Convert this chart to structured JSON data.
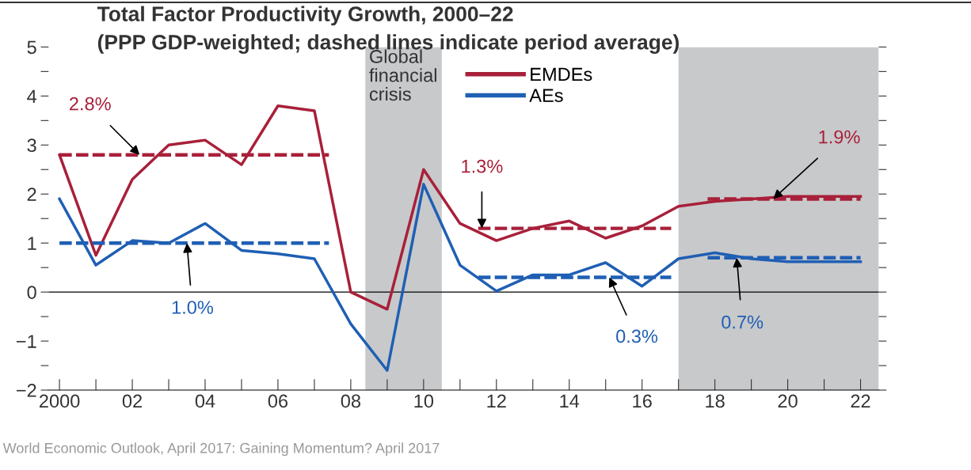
{
  "chart_data": {
    "type": "line",
    "title": "Total Factor Productivity Growth, 2000–22",
    "subtitle": "(PPP GDP-weighted; dashed lines indicate period average)",
    "x": [
      2000,
      2001,
      2002,
      2003,
      2004,
      2005,
      2006,
      2007,
      2008,
      2009,
      2010,
      2011,
      2012,
      2013,
      2014,
      2015,
      2016,
      2017,
      2018,
      2019,
      2020,
      2021,
      2022
    ],
    "series": [
      {
        "name": "EMDEs",
        "color": "#a8203a",
        "line_style": "solid",
        "values": [
          2.8,
          0.75,
          2.3,
          3.0,
          3.1,
          2.6,
          3.8,
          3.7,
          0.0,
          -0.35,
          2.5,
          1.4,
          1.05,
          1.3,
          1.45,
          1.1,
          1.35,
          1.75,
          1.85,
          1.9,
          1.95,
          1.95,
          1.95
        ]
      },
      {
        "name": "AEs",
        "color": "#1f5fb4",
        "line_style": "solid",
        "values": [
          1.9,
          0.55,
          1.05,
          1.0,
          1.4,
          0.85,
          0.78,
          0.68,
          -0.65,
          -1.6,
          2.2,
          0.55,
          0.02,
          0.35,
          0.35,
          0.6,
          0.12,
          0.68,
          0.8,
          0.68,
          0.62,
          0.62,
          0.62
        ]
      },
      {
        "color": "#a8203a",
        "line_style": "dashed",
        "x": [
          2000,
          2007.4
        ],
        "values": [
          2.8,
          2.8
        ]
      },
      {
        "color": "#a8203a",
        "line_style": "dashed",
        "x": [
          2011.5,
          2016.8
        ],
        "values": [
          1.3,
          1.3
        ]
      },
      {
        "color": "#a8203a",
        "line_style": "dashed",
        "x": [
          2017.8,
          2022
        ],
        "values": [
          1.9,
          1.9
        ]
      },
      {
        "color": "#1f5fb4",
        "line_style": "dashed",
        "x": [
          2000,
          2007.4
        ],
        "values": [
          1.0,
          1.0
        ]
      },
      {
        "color": "#1f5fb4",
        "line_style": "dashed",
        "x": [
          2011.5,
          2016.8
        ],
        "values": [
          0.3,
          0.3
        ]
      },
      {
        "color": "#1f5fb4",
        "line_style": "dashed",
        "x": [
          2017.8,
          2022
        ],
        "values": [
          0.7,
          0.7
        ]
      }
    ],
    "xlim": [
      1999.7,
      2022.5
    ],
    "xticks": [
      {
        "value": 2000,
        "label": "2000"
      },
      {
        "value": 2001,
        "label": null
      },
      {
        "value": 2002,
        "label": "02"
      },
      {
        "value": 2003,
        "label": null
      },
      {
        "value": 2004,
        "label": "04"
      },
      {
        "value": 2005,
        "label": null
      },
      {
        "value": 2006,
        "label": "06"
      },
      {
        "value": 2007,
        "label": null
      },
      {
        "value": 2008,
        "label": "08"
      },
      {
        "value": 2009,
        "label": null
      },
      {
        "value": 2010,
        "label": "10"
      },
      {
        "value": 2011,
        "label": null
      },
      {
        "value": 2012,
        "label": "12"
      },
      {
        "value": 2013,
        "label": null
      },
      {
        "value": 2014,
        "label": "14"
      },
      {
        "value": 2015,
        "label": null
      },
      {
        "value": 2016,
        "label": "16"
      },
      {
        "value": 2017,
        "label": null
      },
      {
        "value": 2018,
        "label": "18"
      },
      {
        "value": 2019,
        "label": null
      },
      {
        "value": 2020,
        "label": "20"
      },
      {
        "value": 2021,
        "label": null
      },
      {
        "value": 2022,
        "label": "22"
      }
    ],
    "ylim": [
      -2,
      5
    ],
    "yticks": [
      {
        "value": -2,
        "label": "−2"
      },
      {
        "value": -1.5,
        "label": null
      },
      {
        "value": -1,
        "label": "−1"
      },
      {
        "value": -0.5,
        "label": null
      },
      0,
      {
        "value": 0.5,
        "label": null
      },
      1,
      {
        "value": 1.5,
        "label": null
      },
      2,
      {
        "value": 2.5,
        "label": null
      },
      3,
      {
        "value": 3.5,
        "label": null
      },
      4,
      {
        "value": 4.5,
        "label": null
      },
      5
    ],
    "ref_lines": [
      {
        "axis": "y",
        "value": 0,
        "color": "#000000"
      }
    ],
    "bands": [
      {
        "axis": "x",
        "from": 2008.4,
        "to": 2010.5,
        "label": "Global\nfinancial\ncrisis",
        "color": "#c8c9cb"
      },
      {
        "axis": "x",
        "from": 2017,
        "to": 2022.5,
        "color": "#c8c9cb"
      }
    ],
    "annotations": [
      {
        "text": "2.8%",
        "x": 2002.2,
        "y": 2.8
      },
      {
        "text": "1.0%",
        "x": 2003.5,
        "y": 1.0
      },
      {
        "text": "1.3%",
        "x": 2011.6,
        "y": 1.3
      },
      {
        "text": "0.3%",
        "x": 2015.1,
        "y": 0.3
      },
      {
        "text": "1.9%",
        "x": 2019.6,
        "y": 1.9
      },
      {
        "text": "0.7%",
        "x": 2018.6,
        "y": 0.7
      },
      "World Economic Outlook, April 2017: Gaining Momentum? April 2017"
    ],
    "legend": "top center",
    "grid": false
  }
}
